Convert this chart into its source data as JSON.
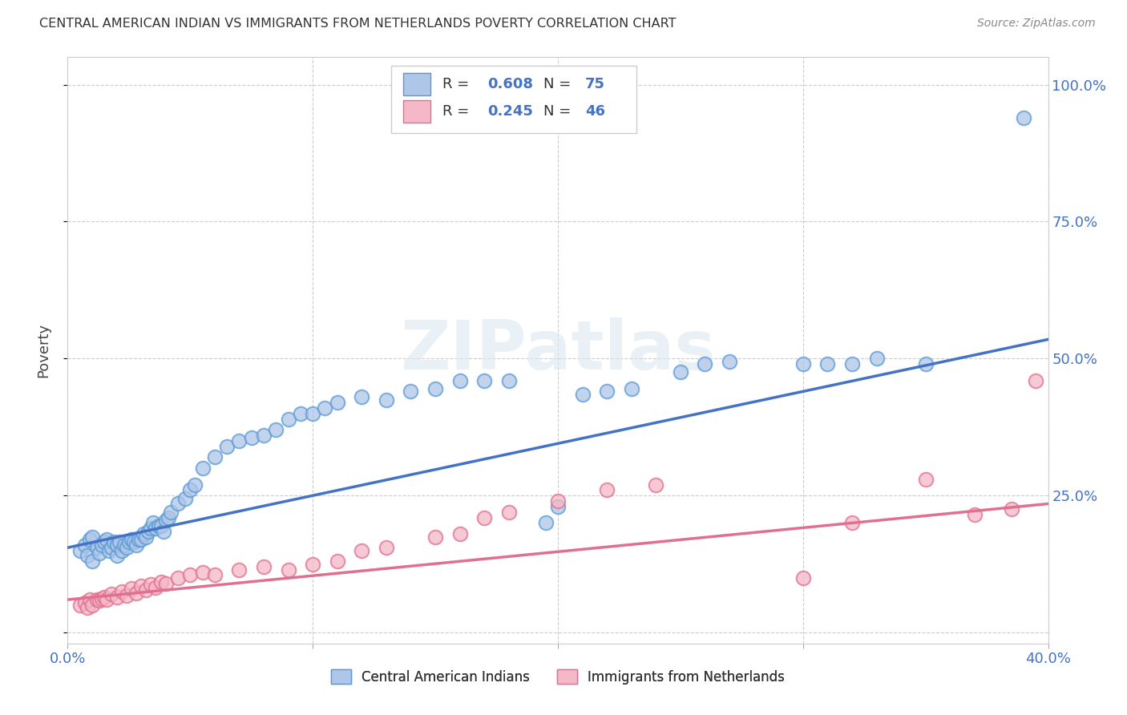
{
  "title": "CENTRAL AMERICAN INDIAN VS IMMIGRANTS FROM NETHERLANDS POVERTY CORRELATION CHART",
  "source": "Source: ZipAtlas.com",
  "ylabel": "Poverty",
  "xlim": [
    0.0,
    0.4
  ],
  "ylim": [
    -0.02,
    1.05
  ],
  "yticks": [
    0.0,
    0.25,
    0.5,
    0.75,
    1.0
  ],
  "ytick_labels": [
    "",
    "25.0%",
    "50.0%",
    "75.0%",
    "100.0%"
  ],
  "xticks": [
    0.0,
    0.1,
    0.2,
    0.3,
    0.4
  ],
  "xtick_labels": [
    "0.0%",
    "",
    "",
    "",
    "40.0%"
  ],
  "blue_color": "#aec6e8",
  "blue_edge": "#5b9bd5",
  "pink_color": "#f4b8c8",
  "pink_edge": "#e07090",
  "line_blue": "#4472c4",
  "line_pink": "#e07090",
  "watermark": "ZIPatlas",
  "blue_scatter_x": [
    0.005,
    0.007,
    0.008,
    0.009,
    0.01,
    0.01,
    0.012,
    0.013,
    0.014,
    0.015,
    0.016,
    0.017,
    0.018,
    0.019,
    0.02,
    0.02,
    0.021,
    0.022,
    0.023,
    0.024,
    0.025,
    0.026,
    0.027,
    0.028,
    0.029,
    0.03,
    0.031,
    0.032,
    0.033,
    0.034,
    0.035,
    0.036,
    0.037,
    0.038,
    0.039,
    0.04,
    0.041,
    0.042,
    0.045,
    0.048,
    0.05,
    0.052,
    0.055,
    0.06,
    0.065,
    0.07,
    0.075,
    0.08,
    0.085,
    0.09,
    0.095,
    0.1,
    0.105,
    0.11,
    0.12,
    0.13,
    0.14,
    0.15,
    0.16,
    0.17,
    0.18,
    0.195,
    0.2,
    0.21,
    0.22,
    0.23,
    0.25,
    0.26,
    0.27,
    0.3,
    0.31,
    0.32,
    0.33,
    0.35,
    0.39
  ],
  "blue_scatter_y": [
    0.15,
    0.16,
    0.14,
    0.17,
    0.13,
    0.175,
    0.155,
    0.145,
    0.16,
    0.165,
    0.17,
    0.15,
    0.155,
    0.165,
    0.14,
    0.16,
    0.165,
    0.15,
    0.16,
    0.155,
    0.165,
    0.17,
    0.165,
    0.16,
    0.17,
    0.17,
    0.18,
    0.175,
    0.185,
    0.19,
    0.2,
    0.19,
    0.195,
    0.195,
    0.185,
    0.205,
    0.21,
    0.22,
    0.235,
    0.245,
    0.26,
    0.27,
    0.3,
    0.32,
    0.34,
    0.35,
    0.355,
    0.36,
    0.37,
    0.39,
    0.4,
    0.4,
    0.41,
    0.42,
    0.43,
    0.425,
    0.44,
    0.445,
    0.46,
    0.46,
    0.46,
    0.2,
    0.23,
    0.435,
    0.44,
    0.445,
    0.475,
    0.49,
    0.495,
    0.49,
    0.49,
    0.49,
    0.5,
    0.49,
    0.94
  ],
  "pink_scatter_x": [
    0.005,
    0.007,
    0.008,
    0.009,
    0.01,
    0.012,
    0.013,
    0.014,
    0.015,
    0.016,
    0.018,
    0.02,
    0.022,
    0.024,
    0.026,
    0.028,
    0.03,
    0.032,
    0.034,
    0.036,
    0.038,
    0.04,
    0.045,
    0.05,
    0.055,
    0.06,
    0.07,
    0.08,
    0.09,
    0.1,
    0.11,
    0.12,
    0.13,
    0.15,
    0.16,
    0.17,
    0.18,
    0.2,
    0.22,
    0.24,
    0.3,
    0.32,
    0.35,
    0.37,
    0.385,
    0.395
  ],
  "pink_scatter_y": [
    0.05,
    0.055,
    0.045,
    0.06,
    0.05,
    0.06,
    0.058,
    0.062,
    0.065,
    0.06,
    0.07,
    0.065,
    0.075,
    0.068,
    0.08,
    0.072,
    0.085,
    0.078,
    0.088,
    0.082,
    0.092,
    0.09,
    0.1,
    0.105,
    0.11,
    0.105,
    0.115,
    0.12,
    0.115,
    0.125,
    0.13,
    0.15,
    0.155,
    0.175,
    0.18,
    0.21,
    0.22,
    0.24,
    0.26,
    0.27,
    0.1,
    0.2,
    0.28,
    0.215,
    0.225,
    0.46
  ],
  "blue_trendline_x": [
    0.0,
    0.4
  ],
  "blue_trendline_y": [
    0.155,
    0.535
  ],
  "pink_trendline_x": [
    0.0,
    0.4
  ],
  "pink_trendline_y": [
    0.06,
    0.235
  ]
}
